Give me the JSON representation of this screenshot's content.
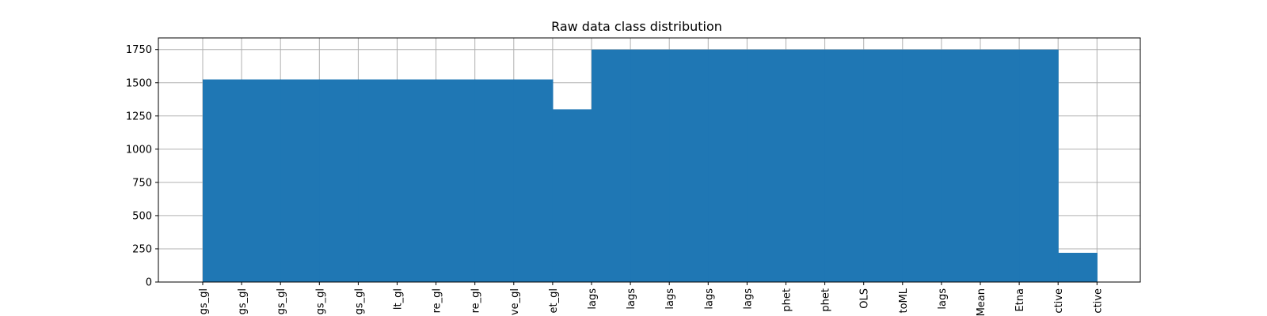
{
  "chart_data": {
    "type": "bar",
    "title": "Raw data class distribution",
    "xlabel": "",
    "ylabel": "",
    "categories": [
      "gs_gl",
      "gs_gl",
      "gs_gl",
      "gs_gl",
      "gs_gl",
      "lt_gl",
      "re_gl",
      "re_gl",
      "ve_gl",
      "et_gl",
      "lags",
      "lags",
      "lags",
      "lags",
      "lags",
      "phet",
      "phet",
      "OLS",
      "toML",
      "lags",
      "Mean",
      "Etna",
      "ctive",
      "ctive"
    ],
    "values": [
      1525,
      1525,
      1525,
      1525,
      1525,
      1525,
      1525,
      1525,
      1525,
      1300,
      1750,
      1750,
      1750,
      1750,
      1750,
      1750,
      1750,
      1750,
      1750,
      1750,
      1750,
      1750,
      220,
      220
    ],
    "ylim": [
      0,
      1837.5
    ],
    "yticks": [
      0,
      250,
      500,
      750,
      1000,
      1250,
      1500,
      1750
    ],
    "grid": true,
    "colors": {
      "bar": "#1f77b4",
      "grid": "#b0b0b0",
      "axis": "#000000"
    }
  }
}
